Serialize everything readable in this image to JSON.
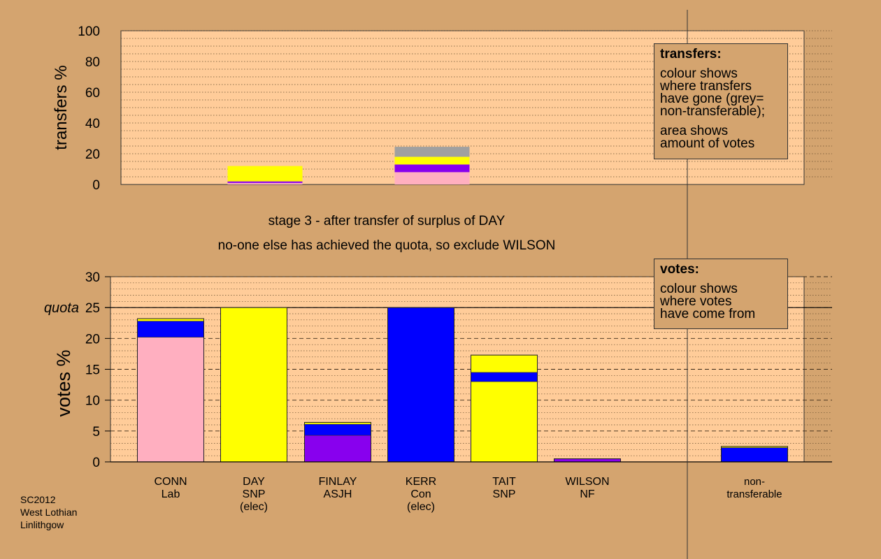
{
  "colors": {
    "background": "#d4a46f",
    "plot_bg": "#ffcc99",
    "pink": "#ffafc0",
    "yellow": "#ffff00",
    "blue": "#0000ff",
    "purple": "#8800ee",
    "grey": "#a0a0a0",
    "line": "#000000"
  },
  "chart_data": [
    {
      "type": "bar",
      "ylabel": "transfers %",
      "ylim": [
        0,
        100
      ],
      "yticks": [
        0,
        20,
        40,
        60,
        80,
        100
      ],
      "grid": true,
      "categories": [
        "CONN",
        "DAY",
        "FINLAY",
        "KERR",
        "TAIT",
        "WILSON",
        "non-transferable"
      ],
      "bars": [
        {
          "category": "DAY",
          "segments": [
            {
              "color": "pink",
              "value": 1
            },
            {
              "color": "purple",
              "value": 1
            },
            {
              "color": "yellow",
              "value": 10
            }
          ]
        },
        {
          "category": "KERR",
          "segments": [
            {
              "color": "pink",
              "value": 8
            },
            {
              "color": "purple",
              "value": 5
            },
            {
              "color": "yellow",
              "value": 5
            },
            {
              "color": "grey",
              "value": 6.5
            }
          ]
        }
      ]
    },
    {
      "type": "bar",
      "ylabel": "votes %",
      "ylim": [
        0,
        30
      ],
      "yticks": [
        0,
        5,
        10,
        15,
        20,
        25,
        30
      ],
      "quota": 25,
      "quota_label": "quota",
      "grid": true,
      "categories": [
        {
          "name": "CONN",
          "party": "Lab",
          "note": ""
        },
        {
          "name": "DAY",
          "party": "SNP",
          "note": "(elec)"
        },
        {
          "name": "FINLAY",
          "party": "ASJH",
          "note": ""
        },
        {
          "name": "KERR",
          "party": "Con",
          "note": "(elec)"
        },
        {
          "name": "TAIT",
          "party": "SNP",
          "note": ""
        },
        {
          "name": "WILSON",
          "party": "NF",
          "note": ""
        },
        {
          "name": "non-",
          "party": "transferable",
          "note": ""
        }
      ],
      "bars": [
        {
          "category": "CONN",
          "segments": [
            {
              "color": "pink",
              "value": 20.2
            },
            {
              "color": "blue",
              "value": 2.6
            },
            {
              "color": "yellow",
              "value": 0.4
            }
          ]
        },
        {
          "category": "DAY",
          "segments": [
            {
              "color": "yellow",
              "value": 25
            }
          ]
        },
        {
          "category": "FINLAY",
          "segments": [
            {
              "color": "purple",
              "value": 4.3
            },
            {
              "color": "blue",
              "value": 1.8
            },
            {
              "color": "yellow",
              "value": 0.3
            }
          ]
        },
        {
          "category": "KERR",
          "segments": [
            {
              "color": "blue",
              "value": 25
            }
          ]
        },
        {
          "category": "TAIT",
          "segments": [
            {
              "color": "yellow",
              "value": 13
            },
            {
              "color": "blue",
              "value": 1.5
            },
            {
              "color": "yellow",
              "value": 2.8
            }
          ]
        },
        {
          "category": "WILSON",
          "segments": [
            {
              "color": "purple",
              "value": 0.5
            }
          ]
        },
        {
          "category": "non-transferable",
          "segments": [
            {
              "color": "blue",
              "value": 2.3
            },
            {
              "color": "yellow",
              "value": 0.2
            }
          ]
        }
      ]
    }
  ],
  "stage_text": {
    "line1": "stage 3 - after transfer of surplus of DAY",
    "line2": "no-one else has achieved the quota, so exclude WILSON"
  },
  "legend_transfers": {
    "title": "transfers:",
    "p1": [
      "colour shows",
      "where transfers",
      "have gone (grey=",
      "non-transferable);"
    ],
    "p2": [
      "area shows",
      "amount of votes"
    ]
  },
  "legend_votes": {
    "title": "votes:",
    "p1": [
      "colour shows",
      "where votes",
      "have come from"
    ]
  },
  "footer": [
    "SC2012",
    "West Lothian",
    "Linlithgow"
  ]
}
